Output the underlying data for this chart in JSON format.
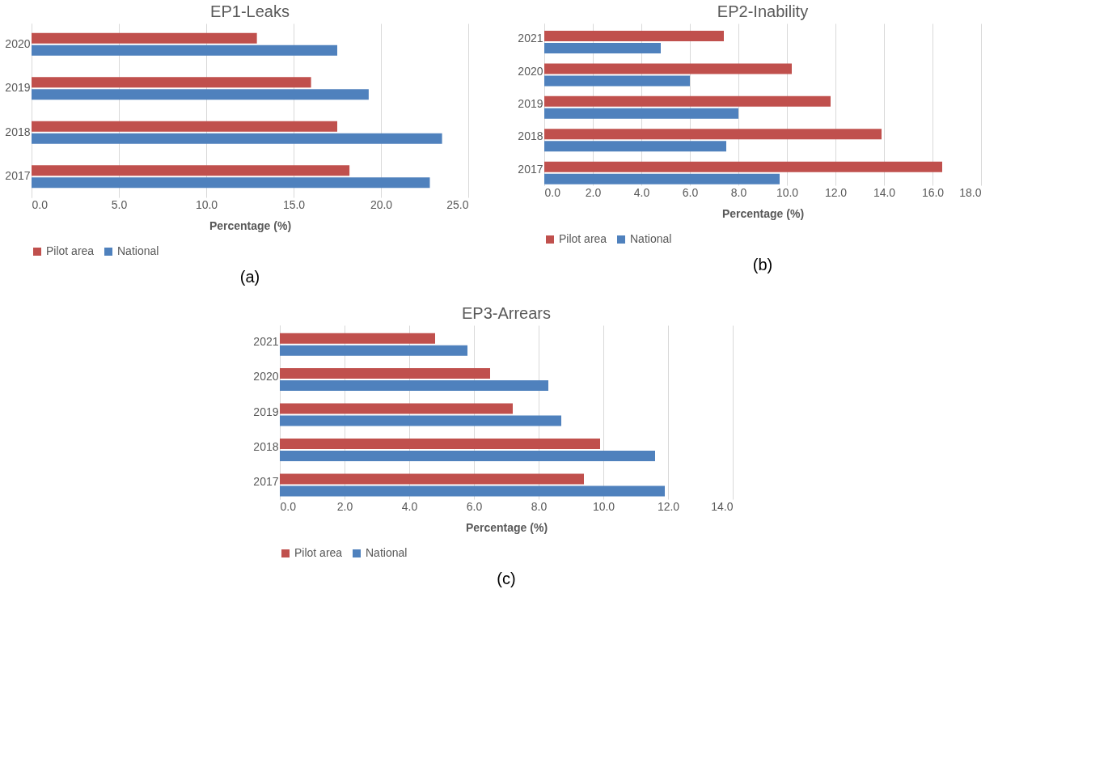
{
  "chart_data": [
    {
      "type": "bar",
      "orientation": "horizontal",
      "title": "EP1-Leaks",
      "xlabel": "Percentage (%)",
      "categories": [
        "2020",
        "2019",
        "2018",
        "2017"
      ],
      "series": [
        {
          "name": "Pilot area",
          "color": "#c0504d",
          "values": [
            12.9,
            16.0,
            17.5,
            18.2
          ]
        },
        {
          "name": "National",
          "color": "#4f81bd",
          "values": [
            17.5,
            19.3,
            23.5,
            22.8
          ]
        }
      ],
      "xlim": [
        0,
        25
      ],
      "xticks": [
        {
          "value": 0,
          "label": "0.0"
        },
        {
          "value": 5,
          "label": "5.0"
        },
        {
          "value": 10,
          "label": "10.0"
        },
        {
          "value": 15,
          "label": "15.0"
        },
        {
          "value": 20,
          "label": "20.0"
        },
        {
          "value": 25,
          "label": "25.0"
        }
      ],
      "grid": "x",
      "legend": "bottom",
      "annotations": [
        "(a)"
      ]
    },
    {
      "type": "bar",
      "orientation": "horizontal",
      "title": "EP2-Inability",
      "xlabel": "Percentage (%)",
      "categories": [
        "2021",
        "2020",
        "2019",
        "2018",
        "2017"
      ],
      "series": [
        {
          "name": "Pilot area",
          "color": "#c0504d",
          "values": [
            7.4,
            10.2,
            11.8,
            13.9,
            16.4
          ]
        },
        {
          "name": "National",
          "color": "#4f81bd",
          "values": [
            4.8,
            6.0,
            8.0,
            7.5,
            9.7
          ]
        }
      ],
      "xlim": [
        0,
        18
      ],
      "xticks": [
        {
          "value": 0,
          "label": "0.0"
        },
        {
          "value": 2,
          "label": "2.0"
        },
        {
          "value": 4,
          "label": "4.0"
        },
        {
          "value": 6,
          "label": "6.0"
        },
        {
          "value": 8,
          "label": "8.0"
        },
        {
          "value": 10,
          "label": "10.0"
        },
        {
          "value": 12,
          "label": "12.0"
        },
        {
          "value": 14,
          "label": "14.0"
        },
        {
          "value": 16,
          "label": "16.0"
        },
        {
          "value": 18,
          "label": "18.0"
        }
      ],
      "grid": "x",
      "legend": "bottom",
      "annotations": [
        "(b)"
      ]
    },
    {
      "type": "bar",
      "orientation": "horizontal",
      "title": "EP3-Arrears",
      "xlabel": "Percentage (%)",
      "categories": [
        "2021",
        "2020",
        "2019",
        "2018",
        "2017"
      ],
      "series": [
        {
          "name": "Pilot area",
          "color": "#c0504d",
          "values": [
            4.8,
            6.5,
            7.2,
            9.9,
            9.4
          ]
        },
        {
          "name": "National",
          "color": "#4f81bd",
          "values": [
            5.8,
            8.3,
            8.7,
            11.6,
            11.9
          ]
        }
      ],
      "xlim": [
        0,
        14
      ],
      "xticks": [
        {
          "value": 0,
          "label": "0.0"
        },
        {
          "value": 2,
          "label": "2.0"
        },
        {
          "value": 4,
          "label": "4.0"
        },
        {
          "value": 6,
          "label": "6.0"
        },
        {
          "value": 8,
          "label": "8.0"
        },
        {
          "value": 10,
          "label": "10.0"
        },
        {
          "value": 12,
          "label": "12.0"
        },
        {
          "value": 14,
          "label": "14.0"
        }
      ],
      "grid": "x",
      "legend": "bottom",
      "annotations": [
        "(c)"
      ]
    }
  ]
}
